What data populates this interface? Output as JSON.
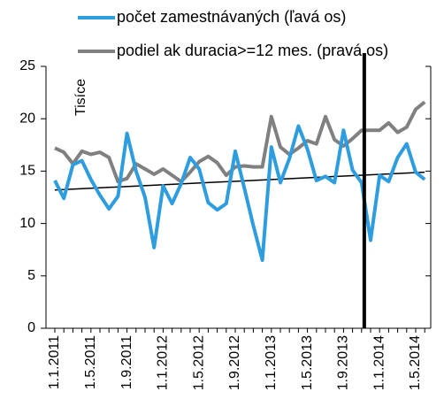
{
  "chart_data": {
    "type": "line",
    "categories": [
      "1.1.2011",
      null,
      null,
      null,
      "1.5.2011",
      null,
      null,
      null,
      "1.9.2011",
      null,
      null,
      null,
      "1.1.2012",
      null,
      null,
      null,
      "1.5.2012",
      null,
      null,
      null,
      "1.9.2012",
      null,
      null,
      null,
      "1.1.2013",
      null,
      null,
      null,
      "1.5.2013",
      null,
      null,
      null,
      "1.9.2013",
      null,
      null,
      null,
      "1.1.2014",
      null,
      null,
      null,
      "1.5.2014",
      null
    ],
    "series": [
      {
        "name": "počet zamestnávaných (ľavá os)",
        "color": "#2e9ddf",
        "values": [
          14.1,
          12.4,
          15.6,
          16.0,
          14.2,
          12.7,
          11.4,
          12.6,
          18.6,
          15.0,
          12.5,
          7.7,
          13.6,
          11.9,
          13.8,
          16.3,
          15.2,
          12.0,
          11.3,
          11.9,
          16.9,
          13.4,
          9.8,
          6.5,
          17.3,
          13.9,
          16.2,
          19.3,
          17.1,
          14.1,
          14.5,
          13.9,
          18.9,
          15.1,
          13.9,
          8.4,
          14.6,
          14.0,
          16.3,
          17.6,
          14.9,
          14.2
        ]
      },
      {
        "name": "podiel ak duracia>=12 mes. (pravá os)",
        "color": "#808080",
        "values": [
          17.2,
          16.8,
          15.7,
          16.9,
          16.6,
          16.8,
          16.3,
          14.0,
          14.3,
          15.7,
          15.2,
          14.7,
          15.2,
          14.6,
          14.0,
          14.9,
          15.9,
          16.4,
          15.8,
          14.6,
          15.4,
          15.5,
          15.4,
          15.4,
          20.2,
          17.3,
          16.6,
          17.2,
          17.9,
          17.6,
          20.2,
          18.0,
          17.4,
          18.1,
          18.9,
          18.9,
          18.9,
          19.6,
          18.7,
          19.2,
          20.9,
          21.6
        ]
      }
    ],
    "trendline": [
      13.2,
      14.9
    ],
    "vline": 34.3,
    "y_axis_label": "Tisíce",
    "ylim": [
      0,
      25
    ],
    "yticks": [
      0,
      5,
      10,
      15,
      20,
      25
    ]
  }
}
